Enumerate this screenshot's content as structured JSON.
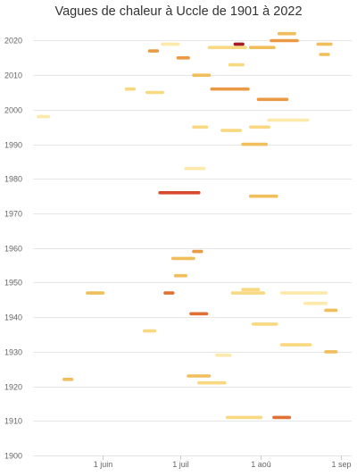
{
  "chart_data": {
    "type": "timeline",
    "title": "Vagues de chaleur à Uccle de 1901 à 2022",
    "xlabel": "",
    "ylabel": "",
    "x_axis": {
      "unit": "day-of-year",
      "range": [
        "05-05",
        "09-05"
      ],
      "ticks": [
        {
          "label": "1 juin",
          "date": "06-01"
        },
        {
          "label": "1 juil",
          "date": "07-01"
        },
        {
          "label": "1 aoû",
          "date": "08-01"
        },
        {
          "label": "1 sep",
          "date": "09-01"
        }
      ]
    },
    "y_axis": {
      "range": [
        1900,
        2024
      ],
      "ticks": [
        1900,
        1910,
        1920,
        1930,
        1940,
        1950,
        1960,
        1970,
        1980,
        1990,
        2000,
        2010,
        2020
      ]
    },
    "grid": true,
    "legend": "none",
    "colors": {
      "mild": "#fde9a9",
      "light": "#f8d982",
      "moderate": "#f1be5c",
      "strong": "#ea9a45",
      "intense": "#e07135",
      "severe": "#d64a2f",
      "extreme": "#a31b24"
    },
    "events": [
      {
        "year": 1911,
        "start": "07-19",
        "end": "08-01",
        "color": "light"
      },
      {
        "year": 1911,
        "start": "08-06",
        "end": "08-12",
        "color": "intense"
      },
      {
        "year": 1922,
        "start": "05-17",
        "end": "05-20",
        "color": "moderate"
      },
      {
        "year": 1921,
        "start": "07-08",
        "end": "07-18",
        "color": "light"
      },
      {
        "year": 1923,
        "start": "07-04",
        "end": "07-12",
        "color": "moderate"
      },
      {
        "year": 1929,
        "start": "07-15",
        "end": "07-20",
        "color": "mild"
      },
      {
        "year": 1930,
        "start": "08-26",
        "end": "08-30",
        "color": "moderate"
      },
      {
        "year": 1932,
        "start": "08-09",
        "end": "08-20",
        "color": "light"
      },
      {
        "year": 1936,
        "start": "06-17",
        "end": "06-21",
        "color": "light"
      },
      {
        "year": 1938,
        "start": "07-29",
        "end": "08-07",
        "color": "light"
      },
      {
        "year": 1941,
        "start": "07-05",
        "end": "07-11",
        "color": "intense"
      },
      {
        "year": 1942,
        "start": "08-26",
        "end": "08-30",
        "color": "moderate"
      },
      {
        "year": 1944,
        "start": "08-18",
        "end": "08-26",
        "color": "mild"
      },
      {
        "year": 1947,
        "start": "05-26",
        "end": "06-01",
        "color": "moderate"
      },
      {
        "year": 1947,
        "start": "06-25",
        "end": "06-28",
        "color": "intense"
      },
      {
        "year": 1947,
        "start": "07-21",
        "end": "08-02",
        "color": "light"
      },
      {
        "year": 1947,
        "start": "08-09",
        "end": "08-26",
        "color": "mild"
      },
      {
        "year": 1948,
        "start": "07-25",
        "end": "07-31",
        "color": "light"
      },
      {
        "year": 1952,
        "start": "06-29",
        "end": "07-03",
        "color": "moderate"
      },
      {
        "year": 1957,
        "start": "06-28",
        "end": "07-06",
        "color": "moderate"
      },
      {
        "year": 1959,
        "start": "07-06",
        "end": "07-09",
        "color": "strong"
      },
      {
        "year": 1975,
        "start": "07-28",
        "end": "08-07",
        "color": "moderate"
      },
      {
        "year": 1976,
        "start": "06-23",
        "end": "07-08",
        "color": "severe"
      },
      {
        "year": 1983,
        "start": "07-03",
        "end": "07-10",
        "color": "mild"
      },
      {
        "year": 1990,
        "start": "07-25",
        "end": "08-03",
        "color": "moderate"
      },
      {
        "year": 1994,
        "start": "07-17",
        "end": "07-24",
        "color": "light"
      },
      {
        "year": 1995,
        "start": "07-06",
        "end": "07-11",
        "color": "light"
      },
      {
        "year": 1995,
        "start": "07-28",
        "end": "08-04",
        "color": "light"
      },
      {
        "year": 1997,
        "start": "08-04",
        "end": "08-19",
        "color": "mild"
      },
      {
        "year": 1998,
        "start": "05-07",
        "end": "05-11",
        "color": "mild"
      },
      {
        "year": 2003,
        "start": "07-31",
        "end": "08-11",
        "color": "strong"
      },
      {
        "year": 2005,
        "start": "06-18",
        "end": "06-24",
        "color": "light"
      },
      {
        "year": 2006,
        "start": "06-10",
        "end": "06-13",
        "color": "light"
      },
      {
        "year": 2006,
        "start": "07-13",
        "end": "07-27",
        "color": "strong"
      },
      {
        "year": 2010,
        "start": "07-06",
        "end": "07-12",
        "color": "moderate"
      },
      {
        "year": 2013,
        "start": "07-20",
        "end": "07-25",
        "color": "light"
      },
      {
        "year": 2015,
        "start": "06-30",
        "end": "07-04",
        "color": "strong"
      },
      {
        "year": 2017,
        "start": "06-19",
        "end": "06-22",
        "color": "strong"
      },
      {
        "year": 2018,
        "start": "07-12",
        "end": "07-26",
        "color": "light"
      },
      {
        "year": 2018,
        "start": "07-28",
        "end": "08-06",
        "color": "moderate"
      },
      {
        "year": 2019,
        "start": "06-24",
        "end": "06-30",
        "color": "mild"
      },
      {
        "year": 2019,
        "start": "07-22",
        "end": "07-25",
        "color": "extreme"
      },
      {
        "year": 2019,
        "start": "08-23",
        "end": "08-28",
        "color": "moderate"
      },
      {
        "year": 2016,
        "start": "08-24",
        "end": "08-27",
        "color": "moderate"
      },
      {
        "year": 2020,
        "start": "08-05",
        "end": "08-15",
        "color": "strong"
      },
      {
        "year": 2022,
        "start": "08-08",
        "end": "08-14",
        "color": "moderate"
      }
    ]
  }
}
